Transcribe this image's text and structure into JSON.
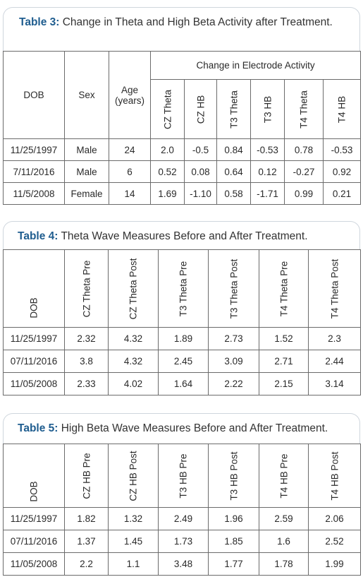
{
  "table3": {
    "label": "Table 3:",
    "caption": " Change in Theta and High Beta Activity after Treatment.",
    "headers": {
      "dob": "DOB",
      "sex": "Sex",
      "age_line1": "Age",
      "age_line2": "(years)",
      "group": "Change in Electrode Activity",
      "cols": [
        "CZ Theta",
        "CZ HB",
        "T3 Theta",
        "T3 HB",
        "T4 Theta",
        "T4 HB"
      ]
    },
    "rows": [
      [
        "11/25/1997",
        "Male",
        "24",
        "2.0",
        "-0.5",
        "0.84",
        "-0.53",
        "0.78",
        "-0.53"
      ],
      [
        "7/11/2016",
        "Male",
        "6",
        "0.52",
        "0.08",
        "0.64",
        "0.12",
        "-0.27",
        "0.92"
      ],
      [
        "11/5/2008",
        "Female",
        "14",
        "1.69",
        "-1.10",
        "0.58",
        "-1.71",
        "0.99",
        "0.21"
      ]
    ]
  },
  "table4": {
    "label": "Table 4:",
    "caption": " Theta Wave Measures Before and After Treatment.",
    "headers": [
      "DOB",
      "CZ Theta Pre",
      "CZ Theta Post",
      "T3 Theta Pre",
      "T3 Theta Post",
      "T4 Theta Pre",
      "T4 Theta Post"
    ],
    "rows": [
      [
        "11/25/1997",
        "2.32",
        "4.32",
        "1.89",
        "2.73",
        "1.52",
        "2.3"
      ],
      [
        "07/11/2016",
        "3.8",
        "4.32",
        "2.45",
        "3.09",
        "2.71",
        "2.44"
      ],
      [
        "11/05/2008",
        "2.33",
        "4.02",
        "1.64",
        "2.22",
        "2.15",
        "3.14"
      ]
    ]
  },
  "table5": {
    "label": "Table 5:",
    "caption": " High Beta Wave Measures Before and After Treatment.",
    "headers": [
      "DOB",
      "CZ HB Pre",
      "CZ HB Post",
      "T3 HB Pre",
      "T3 HB Post",
      "T4 HB Pre",
      "T4 HB Post"
    ],
    "rows": [
      [
        "11/25/1997",
        "1.82",
        "1.32",
        "2.49",
        "1.96",
        "2.59",
        "2.06"
      ],
      [
        "07/11/2016",
        "1.37",
        "1.45",
        "1.73",
        "1.85",
        "1.6",
        "2.52"
      ],
      [
        "11/05/2008",
        "2.2",
        "1.1",
        "3.48",
        "1.77",
        "1.78",
        "1.99"
      ]
    ]
  }
}
